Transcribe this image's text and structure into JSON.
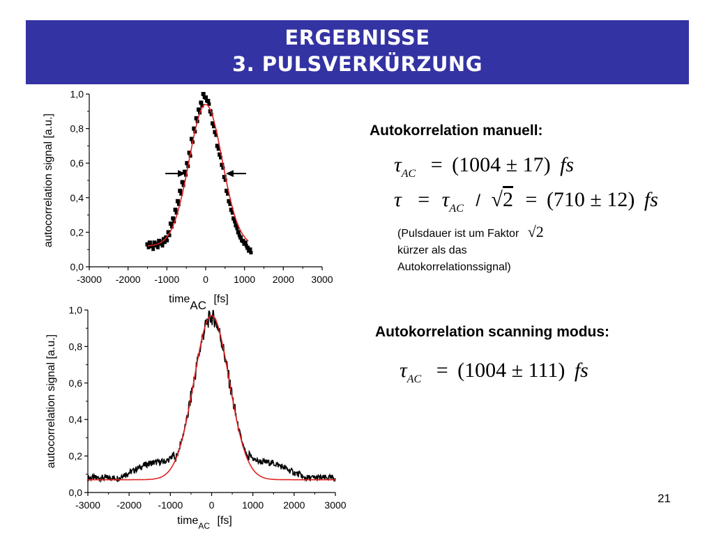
{
  "header": {
    "line1": "ERGEBNISSE",
    "line2": "3. PULSVERKÜRZUNG"
  },
  "chart_data": [
    {
      "type": "scatter",
      "ylabel": "autocorrelation signal [a.u.]",
      "xlabel_main": "time",
      "xlabel_sub": "AC",
      "xlabel_unit": "[fs]",
      "xlim": [
        -3000,
        3000
      ],
      "ylim": [
        0,
        1.0
      ],
      "xticks": [
        "-3000",
        "-2000",
        "-1000",
        "0",
        "1000",
        "2000",
        "3000"
      ],
      "yticks": [
        "0,0",
        "0,2",
        "0,4",
        "0,6",
        "0,8",
        "1,0"
      ],
      "series": [
        {
          "style": "points",
          "color": "#000000",
          "x": [
            -1500,
            -1440,
            -1380,
            -1320,
            -1260,
            -1200,
            -1140,
            -1080,
            -1020,
            -960,
            -900,
            -840,
            -780,
            -720,
            -660,
            -600,
            -540,
            -480,
            -420,
            -360,
            -300,
            -240,
            -180,
            -120,
            -60,
            0,
            60,
            120,
            180,
            240,
            300,
            360,
            420,
            480,
            540,
            600,
            660,
            720,
            780,
            840,
            900,
            960,
            1020,
            1080,
            1140
          ],
          "y": [
            0.13,
            0.14,
            0.12,
            0.14,
            0.13,
            0.15,
            0.14,
            0.16,
            0.17,
            0.2,
            0.25,
            0.28,
            0.33,
            0.38,
            0.44,
            0.49,
            0.55,
            0.6,
            0.66,
            0.74,
            0.8,
            0.86,
            0.91,
            0.95,
            1.0,
            0.98,
            0.96,
            0.9,
            0.83,
            0.78,
            0.7,
            0.65,
            0.59,
            0.52,
            0.44,
            0.38,
            0.33,
            0.28,
            0.24,
            0.2,
            0.17,
            0.15,
            0.14,
            0.11,
            0.1
          ]
        },
        {
          "style": "fit",
          "color": "#e02020",
          "center": 0,
          "fwhm": 1004,
          "amplitude": 0.82,
          "offset": 0.12,
          "xrange": [
            -1500,
            1100
          ]
        }
      ],
      "annotations": [
        "fwhm-arrows"
      ]
    },
    {
      "type": "line",
      "ylabel": "autocorrelation signal [a.u.]",
      "xlabel_main": "time",
      "xlabel_sub": "AC",
      "xlabel_unit": "[fs]",
      "xlim": [
        -3000,
        3000
      ],
      "ylim": [
        0,
        1.0
      ],
      "xticks": [
        "-3000",
        "-2000",
        "-1000",
        "0",
        "1000",
        "2000",
        "3000"
      ],
      "yticks": [
        "0,0",
        "0,2",
        "0,4",
        "0,6",
        "0,8",
        "1,0"
      ],
      "series": [
        {
          "style": "noisy-line",
          "color": "#000000",
          "center": 0,
          "fwhm": 1004,
          "amplitude": 0.88,
          "offset": 0.08,
          "wing_level": 0.16,
          "xrange": [
            -3000,
            3000
          ]
        },
        {
          "style": "fit",
          "color": "#e02020",
          "center": 0,
          "fwhm": 1004,
          "amplitude": 0.9,
          "offset": 0.07,
          "xrange": [
            -3000,
            3000
          ]
        }
      ]
    }
  ],
  "right": {
    "manual_heading": "Autokorrelation manuell:",
    "f1": {
      "tau": "τ",
      "sub": "AC",
      "eq": "=",
      "value": "(1004 ± 17)",
      "unit": "fs"
    },
    "f2": {
      "tau": "τ",
      "eq": "=",
      "tau2": "τ",
      "sub": "AC",
      "slash": "/",
      "sqrt": "√",
      "two": "2",
      "eq2": "=",
      "value": "(710 ± 12)",
      "unit": "fs"
    },
    "note_line1": "(Pulsdauer ist um Faktor",
    "note_sqrt": "√2",
    "note_line2": "kürzer als das",
    "note_line3": "Autokorrelationssignal)",
    "scan_heading": "Autokorrelation scanning modus:",
    "f3": {
      "tau": "τ",
      "sub": "AC",
      "eq": "=",
      "value": "(1004 ± 111)",
      "unit": "fs"
    }
  },
  "page_number": "21"
}
